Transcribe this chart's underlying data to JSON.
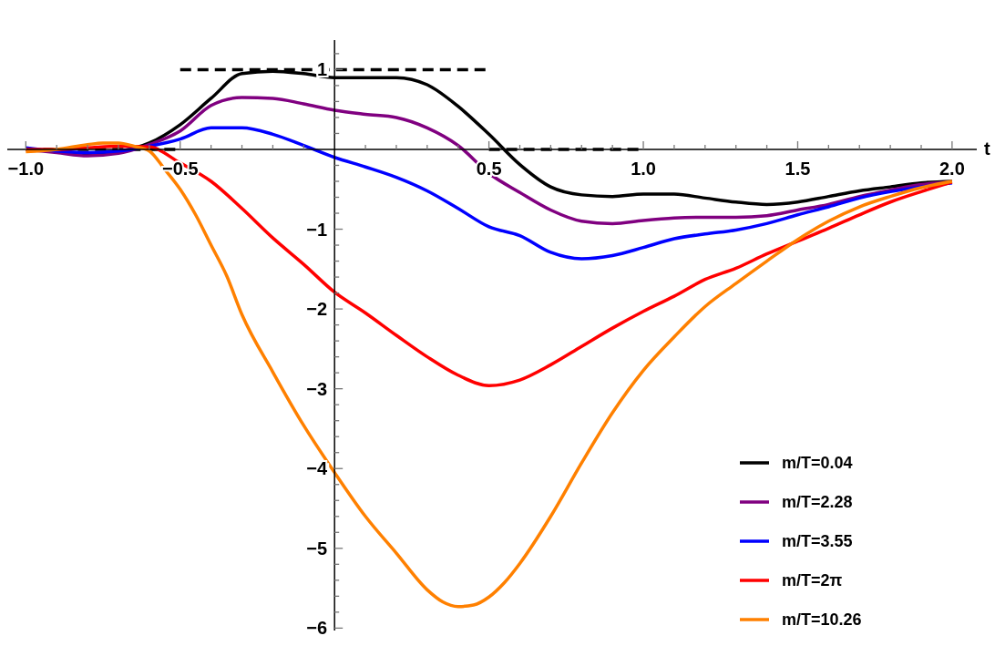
{
  "chart_data": {
    "type": "line",
    "xlabel": "t",
    "x": [
      -1,
      -0.9,
      -0.8,
      -0.7,
      -0.6,
      -0.5,
      -0.4,
      -0.3,
      -0.2,
      -0.1,
      0,
      0.1,
      0.2,
      0.3,
      0.4,
      0.5,
      0.6,
      0.7,
      0.8,
      0.9,
      1.0,
      1.1,
      1.2,
      1.3,
      1.4,
      1.5,
      1.6,
      1.7,
      1.8,
      1.9,
      2.0
    ],
    "xlim": [
      -1.06,
      2.08
    ],
    "ylim": [
      -6.03,
      1.37
    ],
    "xticks": [
      {
        "value": -1,
        "label": "−1.0"
      },
      {
        "value": -0.9,
        "label": null
      },
      {
        "value": -0.8,
        "label": null
      },
      {
        "value": -0.7,
        "label": null
      },
      {
        "value": -0.6,
        "label": null
      },
      {
        "value": -0.5,
        "label": "−0.5"
      },
      {
        "value": -0.4,
        "label": null
      },
      {
        "value": -0.3,
        "label": null
      },
      {
        "value": -0.2,
        "label": null
      },
      {
        "value": -0.1,
        "label": null
      },
      {
        "value": 0.1,
        "label": null
      },
      {
        "value": 0.2,
        "label": null
      },
      {
        "value": 0.3,
        "label": null
      },
      {
        "value": 0.4,
        "label": null
      },
      {
        "value": 0.5,
        "label": "0.5"
      },
      {
        "value": 0.6,
        "label": null
      },
      {
        "value": 0.7,
        "label": null
      },
      {
        "value": 0.8,
        "label": null
      },
      {
        "value": 0.9,
        "label": null
      },
      {
        "value": 1,
        "label": "1.0"
      },
      {
        "value": 1.1,
        "label": null
      },
      {
        "value": 1.2,
        "label": null
      },
      {
        "value": 1.3,
        "label": null
      },
      {
        "value": 1.4,
        "label": null
      },
      {
        "value": 1.5,
        "label": "1.5"
      },
      {
        "value": 1.6,
        "label": null
      },
      {
        "value": 1.7,
        "label": null
      },
      {
        "value": 1.8,
        "label": null
      },
      {
        "value": 1.9,
        "label": null
      },
      {
        "value": 2,
        "label": "2.0"
      }
    ],
    "yticks": [
      {
        "value": -6,
        "label": "−6"
      },
      {
        "value": -5.8,
        "label": null
      },
      {
        "value": -5.6,
        "label": null
      },
      {
        "value": -5.4,
        "label": null
      },
      {
        "value": -5.2,
        "label": null
      },
      {
        "value": -5,
        "label": "−5"
      },
      {
        "value": -4.8,
        "label": null
      },
      {
        "value": -4.6,
        "label": null
      },
      {
        "value": -4.4,
        "label": null
      },
      {
        "value": -4.2,
        "label": null
      },
      {
        "value": -4,
        "label": "−4"
      },
      {
        "value": -3.8,
        "label": null
      },
      {
        "value": -3.6,
        "label": null
      },
      {
        "value": -3.4,
        "label": null
      },
      {
        "value": -3.2,
        "label": null
      },
      {
        "value": -3,
        "label": "−3"
      },
      {
        "value": -2.8,
        "label": null
      },
      {
        "value": -2.6,
        "label": null
      },
      {
        "value": -2.4,
        "label": null
      },
      {
        "value": -2.2,
        "label": null
      },
      {
        "value": -2,
        "label": "−2"
      },
      {
        "value": -1.8,
        "label": null
      },
      {
        "value": -1.6,
        "label": null
      },
      {
        "value": -1.4,
        "label": null
      },
      {
        "value": -1.2,
        "label": null
      },
      {
        "value": -1,
        "label": "−1"
      },
      {
        "value": -0.8,
        "label": null
      },
      {
        "value": -0.6,
        "label": null
      },
      {
        "value": -0.4,
        "label": null
      },
      {
        "value": -0.2,
        "label": null
      },
      {
        "value": 0.2,
        "label": null
      },
      {
        "value": 0.4,
        "label": null
      },
      {
        "value": 0.6,
        "label": null
      },
      {
        "value": 0.8,
        "label": null
      },
      1,
      {
        "value": 1.2,
        "label": null
      }
    ],
    "legend": "bottom right",
    "series": [
      {
        "type": "line",
        "line_style": "dashed",
        "color": "#000000",
        "x": [
          -1,
          -0.5
        ],
        "values": [
          0,
          0
        ]
      },
      {
        "type": "line",
        "line_style": "dashed",
        "color": "#000000",
        "x": [
          -0.5,
          0.5
        ],
        "values": [
          1,
          1
        ]
      },
      {
        "type": "line",
        "line_style": "dashed",
        "color": "#000000",
        "x": [
          0.5,
          1.0
        ],
        "values": [
          0,
          0
        ]
      },
      {
        "name": "m/T=0.04",
        "color": "#000000",
        "values": [
          0.01,
          -0.03,
          -0.07,
          -0.03,
          0.08,
          0.31,
          0.64,
          0.95,
          0.98,
          0.95,
          0.9,
          0.9,
          0.9,
          0.81,
          0.54,
          0.19,
          -0.19,
          -0.47,
          -0.57,
          -0.59,
          -0.56,
          -0.56,
          -0.61,
          -0.66,
          -0.69,
          -0.66,
          -0.59,
          -0.52,
          -0.47,
          -0.42,
          -0.4
        ]
      },
      {
        "name": "m/T=2.28",
        "color": "#800080",
        "values": [
          0,
          -0.04,
          -0.08,
          -0.05,
          0.06,
          0.23,
          0.55,
          0.65,
          0.64,
          0.57,
          0.49,
          0.44,
          0.4,
          0.27,
          0.05,
          -0.3,
          -0.54,
          -0.76,
          -0.9,
          -0.93,
          -0.89,
          -0.86,
          -0.85,
          -0.85,
          -0.83,
          -0.76,
          -0.69,
          -0.59,
          -0.51,
          -0.44,
          -0.41
        ]
      },
      {
        "name": "m/T=3.55",
        "color": "#0000ff",
        "values": [
          0.02,
          -0.02,
          -0.04,
          -0.02,
          0.04,
          0.13,
          0.27,
          0.27,
          0.19,
          0.05,
          -0.1,
          -0.22,
          -0.35,
          -0.52,
          -0.74,
          -0.97,
          -1.08,
          -1.29,
          -1.37,
          -1.33,
          -1.23,
          -1.12,
          -1.06,
          -1.01,
          -0.93,
          -0.82,
          -0.72,
          -0.61,
          -0.53,
          -0.47,
          -0.42
        ]
      },
      {
        "name": "m/T=2π",
        "color": "#ff0000",
        "values": [
          0,
          0,
          0.02,
          0.04,
          0.03,
          -0.17,
          -0.4,
          -0.74,
          -1.11,
          -1.44,
          -1.79,
          -2.05,
          -2.33,
          -2.6,
          -2.83,
          -2.96,
          -2.89,
          -2.7,
          -2.47,
          -2.24,
          -2.03,
          -1.84,
          -1.63,
          -1.49,
          -1.31,
          -1.15,
          -0.99,
          -0.82,
          -0.66,
          -0.53,
          -0.41
        ]
      },
      {
        "name": "m/T=10.26",
        "color": "#ff8000",
        "x": [
          -1,
          -0.9,
          -0.8,
          -0.75,
          -0.7,
          -0.65,
          -0.6,
          -0.55,
          -0.5,
          -0.45,
          -0.4,
          -0.35,
          -0.3,
          -0.2,
          -0.1,
          0,
          0.1,
          0.2,
          0.3,
          0.35,
          0.4,
          0.45,
          0.5,
          0.55,
          0.6,
          0.7,
          0.8,
          0.9,
          1.0,
          1.1,
          1.2,
          1.3,
          1.4,
          1.5,
          1.6,
          1.7,
          1.8,
          1.9,
          2.0
        ],
        "values": [
          -0.03,
          0,
          0.06,
          0.08,
          0.08,
          0.04,
          -0.02,
          -0.25,
          -0.5,
          -0.82,
          -1.2,
          -1.58,
          -2.07,
          -2.79,
          -3.46,
          -4.05,
          -4.6,
          -5.06,
          -5.52,
          -5.67,
          -5.73,
          -5.71,
          -5.61,
          -5.43,
          -5.19,
          -4.6,
          -3.93,
          -3.3,
          -2.77,
          -2.35,
          -1.97,
          -1.68,
          -1.4,
          -1.13,
          -0.9,
          -0.72,
          -0.59,
          -0.48,
          -0.4
        ]
      }
    ]
  }
}
